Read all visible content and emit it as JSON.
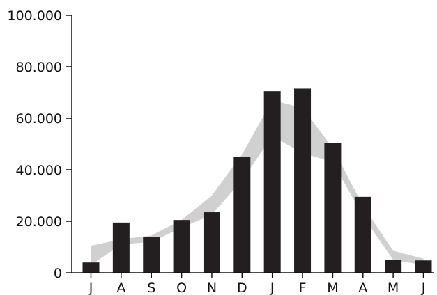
{
  "chart_data": {
    "type": "bar",
    "categories": [
      "J",
      "A",
      "S",
      "O",
      "N",
      "D",
      "J",
      "F",
      "M",
      "A",
      "M",
      "J"
    ],
    "ylim": [
      0,
      100000
    ],
    "yticks": [
      0,
      20000,
      40000,
      60000,
      80000,
      100000
    ],
    "ytick_labels": [
      "0",
      "20.000",
      "40.000",
      "60.000",
      "80.000",
      "100.000"
    ],
    "grid": false,
    "legend": "none",
    "series": [
      {
        "type": "bar",
        "values": [
          4000,
          19500,
          14000,
          20500,
          23500,
          45000,
          70500,
          71500,
          50500,
          29500,
          5000,
          4800
        ],
        "color": "#231f20"
      },
      {
        "type": "band",
        "lower": [
          3000,
          11000,
          12000,
          17500,
          22500,
          36000,
          53000,
          46500,
          43000,
          22000,
          5000,
          3000
        ],
        "upper": [
          10500,
          13000,
          14500,
          20500,
          30000,
          46000,
          67000,
          64000,
          48500,
          26000,
          8500,
          5500
        ],
        "color": "#d0d0d0"
      }
    ]
  }
}
